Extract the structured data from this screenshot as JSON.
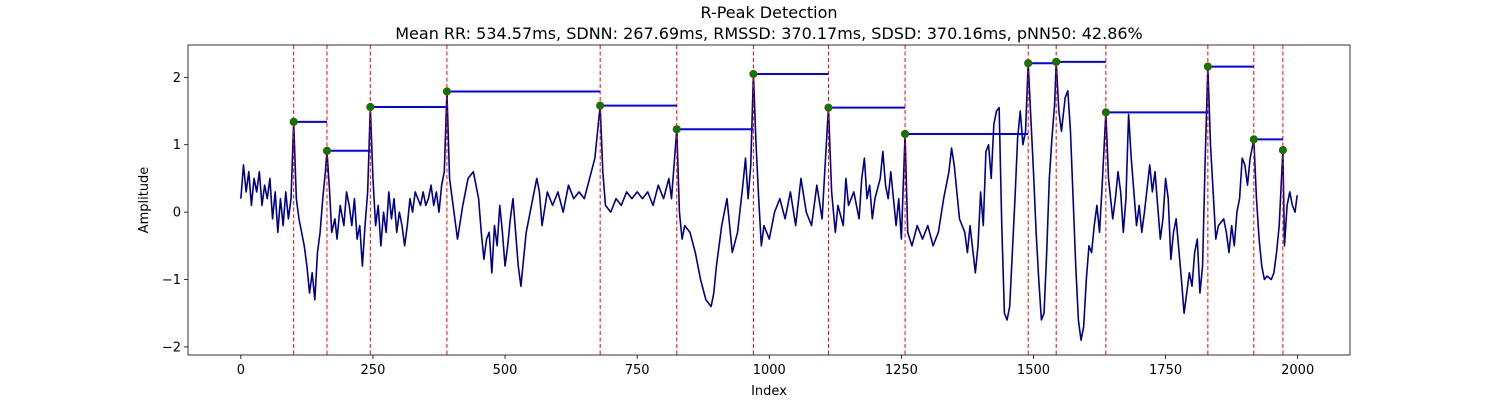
{
  "chart_data": {
    "type": "line",
    "title": "R-Peak Detection",
    "subtitle": "Mean RR: 534.57ms, SDNN: 267.69ms, RMSSD: 370.17ms, SDSD: 370.16ms, pNN50: 42.86%",
    "x_label": "Index",
    "y_label": "Amplitude",
    "xlim": [
      -100,
      2099
    ],
    "ylim": [
      -2.12,
      2.48
    ],
    "xticks": [
      0,
      250,
      500,
      750,
      1000,
      1250,
      1500,
      1750,
      2000
    ],
    "yticks": [
      {
        "value": -2,
        "label": "−2"
      },
      {
        "value": -1,
        "label": "−1"
      },
      0,
      1,
      2
    ],
    "series": [
      {
        "color": "#00008b",
        "x": [
          0,
          5,
          10,
          15,
          20,
          25,
          30,
          35,
          40,
          45,
          50,
          55,
          60,
          65,
          70,
          75,
          80,
          85,
          90,
          95,
          100,
          105,
          110,
          115,
          120,
          125,
          130,
          135,
          140,
          145,
          150,
          155,
          160,
          163,
          168,
          172,
          178,
          182,
          188,
          195,
          200,
          205,
          210,
          215,
          220,
          225,
          230,
          235,
          240,
          245,
          250,
          255,
          260,
          265,
          270,
          275,
          280,
          285,
          290,
          295,
          300,
          305,
          310,
          315,
          320,
          325,
          330,
          340,
          345,
          350,
          355,
          360,
          365,
          370,
          375,
          380,
          385,
          390,
          395,
          400,
          410,
          420,
          430,
          440,
          450,
          455,
          460,
          465,
          470,
          475,
          480,
          485,
          490,
          495,
          500,
          505,
          510,
          515,
          520,
          525,
          530,
          535,
          540,
          550,
          560,
          565,
          570,
          580,
          590,
          600,
          610,
          620,
          630,
          640,
          650,
          660,
          670,
          680,
          685,
          690,
          700,
          710,
          720,
          730,
          740,
          750,
          760,
          770,
          780,
          790,
          800,
          810,
          815,
          825,
          830,
          835,
          840,
          850,
          860,
          870,
          880,
          890,
          895,
          900,
          910,
          920,
          930,
          940,
          950,
          955,
          960,
          965,
          970,
          975,
          980,
          985,
          990,
          1000,
          1010,
          1020,
          1030,
          1040,
          1050,
          1060,
          1070,
          1080,
          1090,
          1100,
          1105,
          1112,
          1118,
          1125,
          1130,
          1140,
          1145,
          1150,
          1160,
          1170,
          1175,
          1180,
          1185,
          1190,
          1195,
          1200,
          1210,
          1215,
          1220,
          1225,
          1230,
          1240,
          1245,
          1250,
          1257,
          1262,
          1270,
          1280,
          1290,
          1300,
          1310,
          1320,
          1330,
          1340,
          1345,
          1350,
          1355,
          1360,
          1370,
          1375,
          1380,
          1390,
          1395,
          1400,
          1405,
          1410,
          1415,
          1420,
          1425,
          1430,
          1435,
          1440,
          1445,
          1450,
          1455,
          1460,
          1465,
          1470,
          1475,
          1480,
          1485,
          1490,
          1495,
          1500,
          1505,
          1510,
          1515,
          1520,
          1525,
          1530,
          1535,
          1540,
          1543,
          1548,
          1553,
          1560,
          1565,
          1570,
          1575,
          1580,
          1585,
          1590,
          1595,
          1600,
          1605,
          1610,
          1615,
          1620,
          1625,
          1630,
          1637,
          1642,
          1650,
          1655,
          1660,
          1665,
          1670,
          1675,
          1680,
          1685,
          1690,
          1695,
          1700,
          1705,
          1710,
          1720,
          1725,
          1730,
          1735,
          1740,
          1745,
          1750,
          1755,
          1760,
          1765,
          1770,
          1780,
          1785,
          1790,
          1795,
          1800,
          1805,
          1810,
          1815,
          1820,
          1825,
          1830,
          1835,
          1840,
          1845,
          1850,
          1860,
          1865,
          1870,
          1875,
          1880,
          1885,
          1890,
          1895,
          1900,
          1905,
          1910,
          1917,
          1922,
          1927,
          1932,
          1937,
          1942,
          1950,
          1955,
          1960,
          1965,
          1972,
          1975,
          1980,
          1985,
          1990,
          1995,
          1999
        ],
        "values": [
          0.2,
          0.7,
          0.3,
          0.6,
          0.1,
          0.5,
          0.3,
          0.6,
          0.1,
          0.4,
          0.2,
          0.5,
          -0.1,
          0.3,
          -0.3,
          0.2,
          -0.2,
          0.3,
          -0.1,
          0.2,
          1.34,
          0.2,
          -0.1,
          -0.3,
          -0.5,
          -0.8,
          -1.2,
          -0.9,
          -1.3,
          -0.6,
          -0.3,
          0.2,
          0.6,
          0.91,
          0.3,
          -0.3,
          -0.1,
          -0.4,
          0.1,
          -0.2,
          0.3,
          0.1,
          -0.2,
          0.2,
          -0.4,
          -0.2,
          -0.8,
          -0.2,
          0.3,
          1.56,
          0.5,
          -0.2,
          0.1,
          -0.5,
          0.0,
          -0.3,
          0.3,
          -0.1,
          0.2,
          -0.3,
          0.0,
          -0.2,
          -0.5,
          -0.2,
          0.2,
          0.0,
          0.3,
          0.1,
          0.3,
          0.1,
          0.2,
          0.4,
          0.1,
          0.3,
          0.0,
          0.4,
          0.6,
          1.79,
          0.5,
          0.2,
          -0.4,
          0.1,
          0.5,
          0.6,
          0.2,
          -0.3,
          -0.7,
          -0.4,
          -0.3,
          -0.9,
          -0.2,
          -0.5,
          0.1,
          -0.3,
          -0.8,
          -0.5,
          -0.1,
          0.2,
          -0.3,
          -0.8,
          -1.1,
          -0.7,
          -0.3,
          0.1,
          0.5,
          0.3,
          -0.2,
          0.3,
          0.1,
          0.3,
          0.0,
          0.4,
          0.2,
          0.3,
          0.2,
          0.5,
          0.8,
          1.58,
          0.6,
          0.1,
          0.0,
          0.2,
          0.1,
          0.3,
          0.2,
          0.3,
          0.2,
          0.3,
          0.1,
          0.4,
          0.2,
          0.5,
          0.2,
          1.23,
          0.0,
          -0.4,
          -0.2,
          -0.3,
          -0.6,
          -1.0,
          -1.3,
          -1.4,
          -1.2,
          -0.8,
          -0.2,
          0.2,
          -0.6,
          -0.3,
          0.4,
          0.8,
          0.2,
          0.7,
          2.05,
          1.0,
          0.2,
          -0.5,
          -0.2,
          -0.4,
          0.0,
          0.2,
          -0.1,
          0.3,
          -0.2,
          0.5,
          0.0,
          -0.2,
          0.4,
          -0.1,
          0.6,
          1.55,
          0.3,
          -0.3,
          0.1,
          -0.2,
          0.5,
          0.1,
          0.3,
          -0.1,
          0.5,
          0.8,
          0.2,
          0.4,
          -0.1,
          0.2,
          0.5,
          0.9,
          0.4,
          0.2,
          0.6,
          -0.2,
          0.2,
          -0.4,
          1.16,
          -0.3,
          -0.5,
          -0.2,
          -0.4,
          -0.2,
          -0.5,
          -0.3,
          0.2,
          0.6,
          0.95,
          0.7,
          0.3,
          -0.1,
          -0.3,
          -0.6,
          -0.2,
          -0.9,
          -0.5,
          0.3,
          -0.2,
          0.9,
          1.0,
          0.5,
          1.3,
          1.5,
          1.55,
          -0.2,
          -1.5,
          -1.6,
          -1.4,
          -0.6,
          0.2,
          1.1,
          1.5,
          1.0,
          1.2,
          2.21,
          1.4,
          0.6,
          -0.3,
          -1.0,
          -1.6,
          -1.5,
          -0.6,
          0.5,
          1.1,
          1.6,
          2.23,
          1.5,
          1.2,
          1.7,
          1.8,
          1.2,
          0.2,
          -0.8,
          -1.6,
          -1.9,
          -1.7,
          -1.0,
          -0.5,
          -0.6,
          -0.2,
          0.1,
          -0.3,
          0.4,
          1.48,
          0.5,
          -0.1,
          0.2,
          0.6,
          0.3,
          -0.3,
          0.2,
          1.45,
          0.8,
          0.3,
          -0.2,
          0.1,
          -0.3,
          0.0,
          0.7,
          0.3,
          0.6,
          0.1,
          -0.4,
          -0.1,
          0.5,
          0.2,
          -0.7,
          -0.3,
          -0.1,
          -1.0,
          -1.5,
          -1.2,
          -0.9,
          -1.1,
          -0.6,
          -0.4,
          -1.2,
          -0.8,
          0.8,
          2.16,
          1.0,
          0.3,
          -0.4,
          -0.2,
          -0.1,
          -0.3,
          -0.6,
          -0.2,
          -0.5,
          0.0,
          0.2,
          0.8,
          0.7,
          0.4,
          0.8,
          1.08,
          0.2,
          -0.4,
          -0.8,
          -1.0,
          -0.95,
          -1.0,
          -0.9,
          -0.6,
          -0.2,
          0.92,
          -0.5,
          0.1,
          0.3,
          0.1,
          0.0,
          0.25
        ]
      }
    ],
    "peaks": {
      "color": "green",
      "x": [
        100,
        163,
        245,
        390,
        680,
        825,
        970,
        1112,
        1257,
        1490,
        1543,
        1637,
        1830,
        1917,
        1972
      ],
      "values": [
        1.34,
        0.91,
        1.56,
        1.79,
        1.58,
        1.23,
        2.05,
        1.55,
        1.16,
        2.21,
        2.23,
        1.48,
        2.16,
        1.08,
        0.92
      ]
    },
    "peak_line_color": "red",
    "rr_line_color": "blue"
  }
}
